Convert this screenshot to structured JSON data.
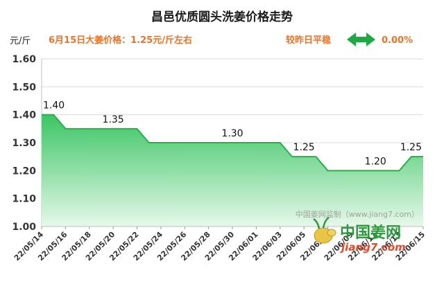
{
  "chart_data": {
    "type": "area",
    "title": "昌邑优质圆头洗姜价格走势",
    "unit_label": "元/斤",
    "info_left": "6月15日大姜价格：1.25元/斤左右",
    "info_right_label": "较昨日平稳",
    "info_right_value": "0.00%",
    "ylim": [
      1.0,
      1.6
    ],
    "yticks": [
      "1.00",
      "1.10",
      "1.20",
      "1.30",
      "1.40",
      "1.50",
      "1.60"
    ],
    "x_tick_labels": [
      "22/05/14",
      "22/05/16",
      "22/05/18",
      "22/05/20",
      "22/05/22",
      "22/05/24",
      "22/05/26",
      "22/05/28",
      "22/05/30",
      "22/06/01",
      "22/06/03",
      "22/06/05",
      "22/06/07",
      "22/06/09",
      "22/06/11",
      "22/06/13",
      "22/06/15"
    ],
    "x": [
      "22/05/14",
      "22/05/15",
      "22/05/16",
      "22/05/17",
      "22/05/18",
      "22/05/19",
      "22/05/20",
      "22/05/21",
      "22/05/22",
      "22/05/23",
      "22/05/24",
      "22/05/25",
      "22/05/26",
      "22/05/27",
      "22/05/28",
      "22/05/29",
      "22/05/30",
      "22/05/31",
      "22/06/01",
      "22/06/02",
      "22/06/03",
      "22/06/04",
      "22/06/05",
      "22/06/06",
      "22/06/07",
      "22/06/08",
      "22/06/09",
      "22/06/10",
      "22/06/11",
      "22/06/12",
      "22/06/13",
      "22/06/14",
      "22/06/15"
    ],
    "values": [
      1.4,
      1.4,
      1.35,
      1.35,
      1.35,
      1.35,
      1.35,
      1.35,
      1.35,
      1.3,
      1.3,
      1.3,
      1.3,
      1.3,
      1.3,
      1.3,
      1.3,
      1.3,
      1.3,
      1.3,
      1.3,
      1.25,
      1.25,
      1.25,
      1.2,
      1.2,
      1.2,
      1.2,
      1.2,
      1.2,
      1.2,
      1.25,
      1.25
    ],
    "data_labels": [
      {
        "index": 0,
        "text": "1.40"
      },
      {
        "index": 6,
        "text": "1.35"
      },
      {
        "index": 16,
        "text": "1.30"
      },
      {
        "index": 22,
        "text": "1.25"
      },
      {
        "index": 28,
        "text": "1.20"
      },
      {
        "index": 32,
        "text": "1.25"
      }
    ],
    "grid": true,
    "legend": "none",
    "colors": {
      "line": "#27b04a",
      "fill_top": "#3cc565",
      "fill_bottom": "#e6f8e9",
      "grid": "#d9d9d9",
      "arrow": "#1fa843",
      "accent": "#e8742a"
    }
  },
  "watermark": "中国姜网监制（www.jiang7.com）",
  "logo": {
    "brand_cn": "中国姜网",
    "url_text": "jiang7.com"
  }
}
